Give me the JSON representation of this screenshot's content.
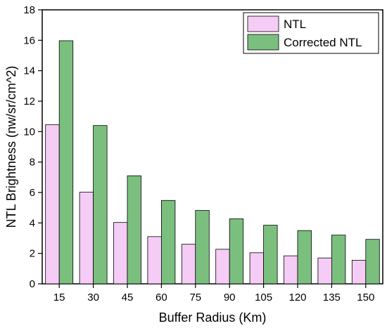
{
  "chart_data": {
    "type": "bar",
    "xlabel": "Buffer Radius (Km)",
    "ylabel": "NTL Brightness (nw/sr/cm^2)",
    "ylim": [
      0,
      18
    ],
    "yticks": [
      0,
      2,
      4,
      6,
      8,
      10,
      12,
      14,
      16,
      18
    ],
    "categories": [
      "15",
      "30",
      "45",
      "60",
      "75",
      "90",
      "105",
      "120",
      "135",
      "150"
    ],
    "series": [
      {
        "name": "NTL",
        "color": "#F5CCF5",
        "values": [
          10.45,
          6.02,
          4.03,
          3.1,
          2.6,
          2.27,
          2.04,
          1.84,
          1.7,
          1.55
        ]
      },
      {
        "name": "Corrected NTL",
        "color": "#7BBF7F",
        "values": [
          15.97,
          10.4,
          7.1,
          5.48,
          4.82,
          4.27,
          3.85,
          3.5,
          3.2,
          2.92
        ]
      }
    ],
    "legend_position": "top-right",
    "grid": false
  }
}
